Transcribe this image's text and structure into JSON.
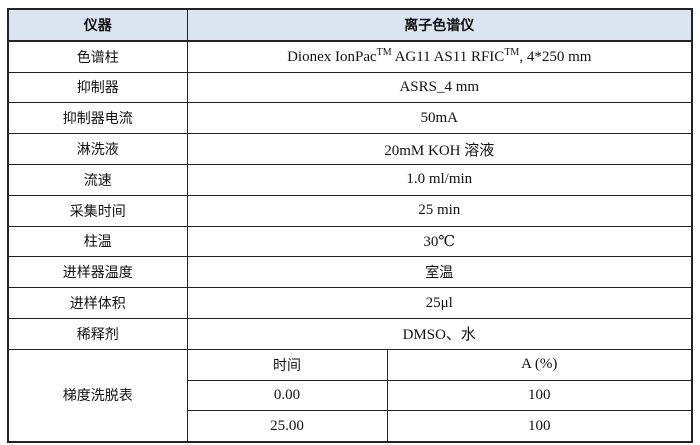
{
  "header": {
    "left": "仪器",
    "right": "离子色谱仪"
  },
  "rows": [
    {
      "label": "色谱柱",
      "value_parts": [
        "Dionex IonPac",
        "TM",
        " AG11 AS11 RFIC",
        "TM",
        ",  4*250 mm"
      ]
    },
    {
      "label": "抑制器",
      "value": "ASRS_4 mm"
    },
    {
      "label": "抑制器电流",
      "value": "50mA"
    },
    {
      "label": "淋洗液",
      "value": "20mM KOH 溶液"
    },
    {
      "label": "流速",
      "value": "1.0 ml/min"
    },
    {
      "label": "采集时间",
      "value": "25 min"
    },
    {
      "label": "柱温",
      "value": "30℃"
    },
    {
      "label": "进样器温度",
      "value": "室温"
    },
    {
      "label": "进样体积",
      "value": "25μl"
    },
    {
      "label": "稀释剂",
      "value": "DMSO、水"
    }
  ],
  "gradient": {
    "label": "梯度洗脱表",
    "columns": [
      "时间",
      "A (%)"
    ],
    "rows": [
      [
        "0.00",
        "100"
      ],
      [
        "25.00",
        "100"
      ]
    ]
  },
  "colors": {
    "header_bg": "#dbe5f1",
    "border": "#222222"
  }
}
